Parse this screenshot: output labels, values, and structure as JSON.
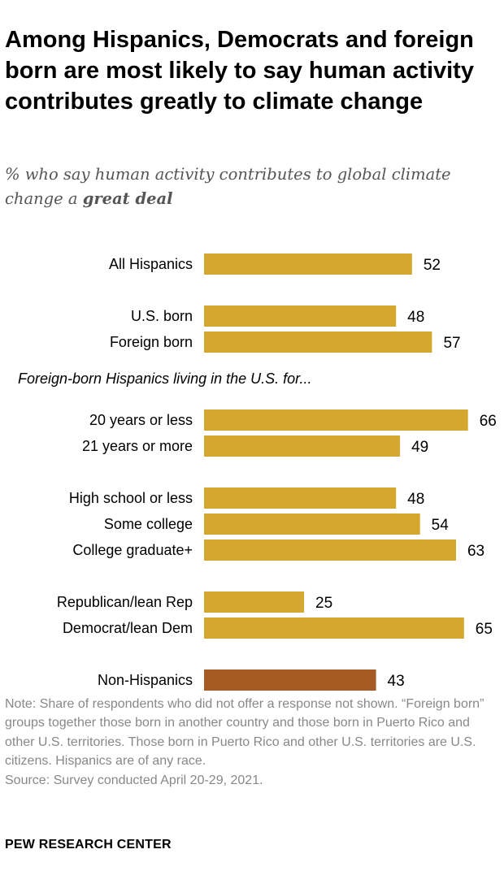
{
  "title": "Among Hispanics, Democrats and foreign born are most likely to say human activity contributes greatly to climate change",
  "subtitle_prefix": "% who say human activity contributes to global climate change a",
  "subtitle_emphasis": "great deal",
  "note": "Note: Share of respondents who did not offer a response not shown. “Foreign born” groups together those born in another country and those born in Puerto Rico and other U.S. territories. Those born in Puerto Rico and other U.S. territories are U.S. citizens. Hispanics are of any race.",
  "source": "Source: Survey conducted April 20-29, 2021.",
  "brand": "PEW RESEARCH CENTER",
  "colors": {
    "hispanic_bar": "#D4A82F",
    "non_hispanic_bar": "#A65A24",
    "label": "#000000",
    "note": "#888888"
  },
  "chart_data": {
    "type": "bar",
    "orientation": "horizontal",
    "title": "Among Hispanics, Democrats and foreign born are most likely to say human activity contributes greatly to climate change",
    "xlabel": "",
    "ylabel": "",
    "xlim": [
      0,
      100
    ],
    "grid": false,
    "group_header": "Foreign-born Hispanics living in the U.S. for...",
    "categories": [
      "All Hispanics",
      "U.S. born",
      "Foreign born",
      "20 years or less",
      "21 years or more",
      "High school or less",
      "Some college",
      "College graduate+",
      "Republican/lean Rep",
      "Democrat/lean Dem",
      "Non-Hispanics"
    ],
    "values": [
      52,
      48,
      57,
      66,
      49,
      48,
      54,
      63,
      25,
      65,
      43
    ],
    "groups": [
      0,
      1,
      1,
      2,
      2,
      3,
      3,
      3,
      4,
      4,
      5
    ]
  }
}
